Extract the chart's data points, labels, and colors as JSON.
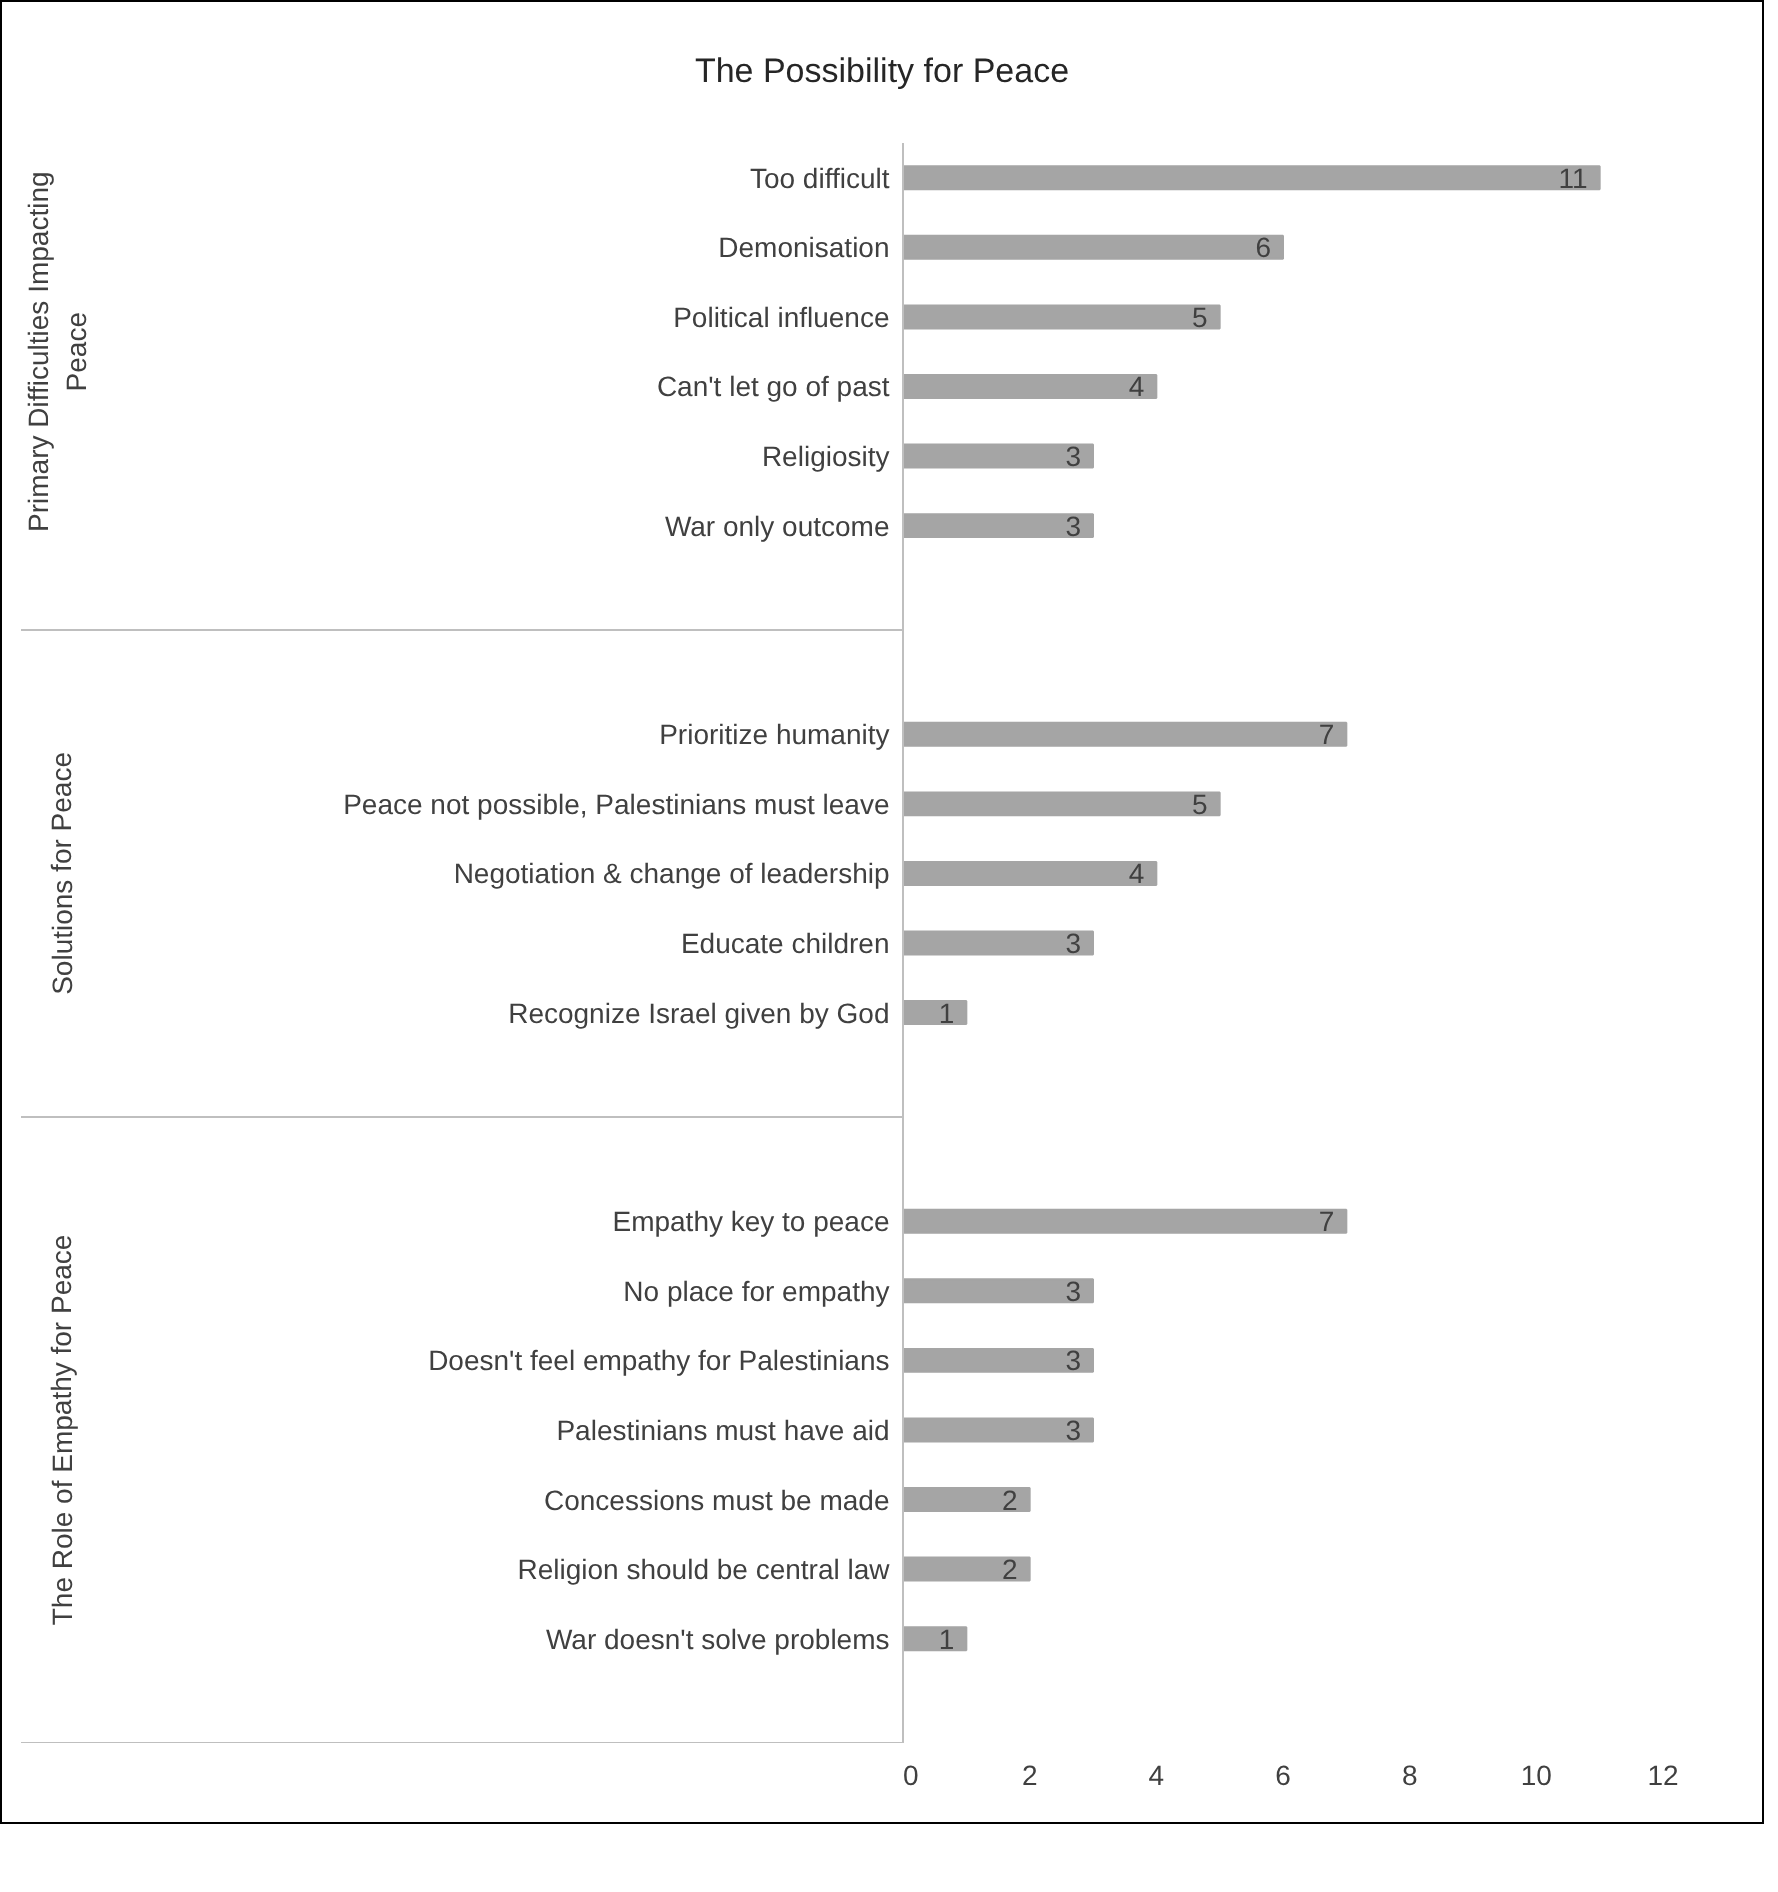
{
  "chart_data": {
    "type": "bar",
    "orientation": "horizontal",
    "title": "The Possibility for Peace",
    "categories": [
      "Too difficult",
      "Demonisation",
      "Political influence",
      "Can't let go of past",
      "Religiosity",
      "War only outcome",
      null,
      null,
      "Prioritize humanity",
      "Peace not possible, Palestinians must leave",
      "Negotiation & change of leadership",
      "Educate children",
      "Recognize Israel given by God",
      null,
      null,
      "Empathy key to peace",
      "No place for empathy",
      "Doesn't feel empathy for Palestinians",
      "Palestinians must have aid",
      "Concessions must be made",
      "Religion should be central law",
      "War doesn't solve problems",
      null
    ],
    "values": [
      11,
      6,
      5,
      4,
      3,
      3,
      null,
      null,
      7,
      5,
      4,
      3,
      1,
      null,
      null,
      7,
      3,
      3,
      3,
      2,
      2,
      1,
      null
    ],
    "color": "#a5a5a5",
    "xlim": [
      0,
      12
    ],
    "xticks": [
      0,
      2,
      4,
      6,
      8,
      10,
      12
    ],
    "grid": false,
    "data_labels": true,
    "annotations": [
      "Primary Difficulties Impacting Peace",
      "Solutions for Peace",
      "The Role of Empathy for Peace"
    ]
  }
}
